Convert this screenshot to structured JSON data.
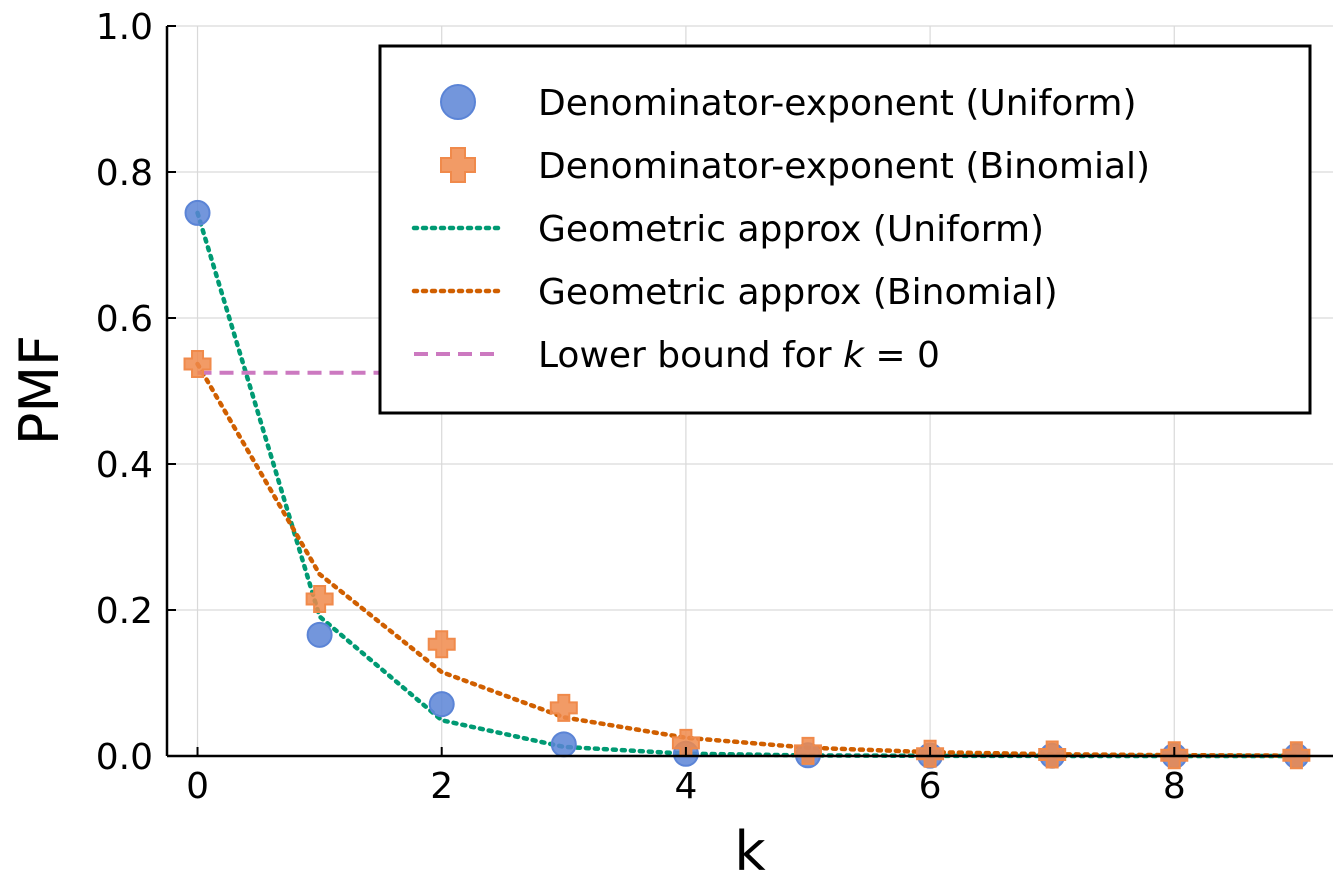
{
  "chart_data": {
    "type": "scatter",
    "xlabel": "k",
    "ylabel": "PMF",
    "xlim": [
      -0.25,
      9.3
    ],
    "ylim": [
      0,
      1.0
    ],
    "xticks": [
      0,
      2,
      4,
      6,
      8
    ],
    "xtick_labels": [
      "0",
      "2",
      "4",
      "6",
      "8"
    ],
    "yticks": [
      0,
      0.2,
      0.4,
      0.6,
      0.8,
      1.0
    ],
    "ytick_labels": [
      "0.0",
      "0.2",
      "0.4",
      "0.6",
      "0.8",
      "1.0"
    ],
    "grid": true,
    "legend_position": "top-right",
    "series": [
      {
        "name": "Denominator-exponent (Uniform)",
        "kind": "scatter",
        "marker": "circle",
        "color": "#5b84d6",
        "x": [
          0,
          1,
          2,
          3,
          4,
          5,
          6,
          7,
          8,
          9
        ],
        "y": [
          0.744,
          0.166,
          0.071,
          0.016,
          0.003,
          0.001,
          0.0005,
          0.0003,
          0.0001,
          0.0001
        ]
      },
      {
        "name": "Denominator-exponent (Binomial)",
        "kind": "scatter",
        "marker": "cross",
        "color": "#f08a4b",
        "x": [
          0,
          1,
          2,
          3,
          4,
          5,
          6,
          7,
          8,
          9
        ],
        "y": [
          0.537,
          0.215,
          0.153,
          0.066,
          0.018,
          0.007,
          0.003,
          0.002,
          0.001,
          0.001
        ]
      },
      {
        "name": "Geometric approx (Uniform)",
        "kind": "line",
        "style": "dotted",
        "color": "#009a73",
        "x": [
          0,
          1,
          2,
          3,
          4,
          5,
          6,
          7,
          8,
          9
        ],
        "y": [
          0.744,
          0.191,
          0.049,
          0.0125,
          0.0032,
          0.0008,
          0.0002,
          0.0001,
          0.0,
          0.0
        ]
      },
      {
        "name": "Geometric approx (Binomial)",
        "kind": "line",
        "style": "dotted",
        "color": "#d05f00",
        "x": [
          0,
          1,
          2,
          3,
          4,
          5,
          6,
          7,
          8,
          9
        ],
        "y": [
          0.537,
          0.249,
          0.115,
          0.053,
          0.025,
          0.0114,
          0.0053,
          0.0024,
          0.0011,
          0.0005
        ]
      },
      {
        "name": "Lower bound for k = 0",
        "kind": "line",
        "style": "dashed",
        "color": "#cc79c0",
        "x": [
          0,
          9
        ],
        "y": [
          0.525,
          0.525
        ]
      }
    ],
    "legend_label_parts": [
      {
        "plain": "Denominator-exponent (Uniform)"
      },
      {
        "plain": "Denominator-exponent (Binomial)"
      },
      {
        "plain": "Geometric approx (Uniform)"
      },
      {
        "plain": "Geometric approx (Binomial)"
      },
      {
        "plain": "Lower bound for ",
        "italic": "k",
        "rest": " = 0"
      }
    ]
  }
}
